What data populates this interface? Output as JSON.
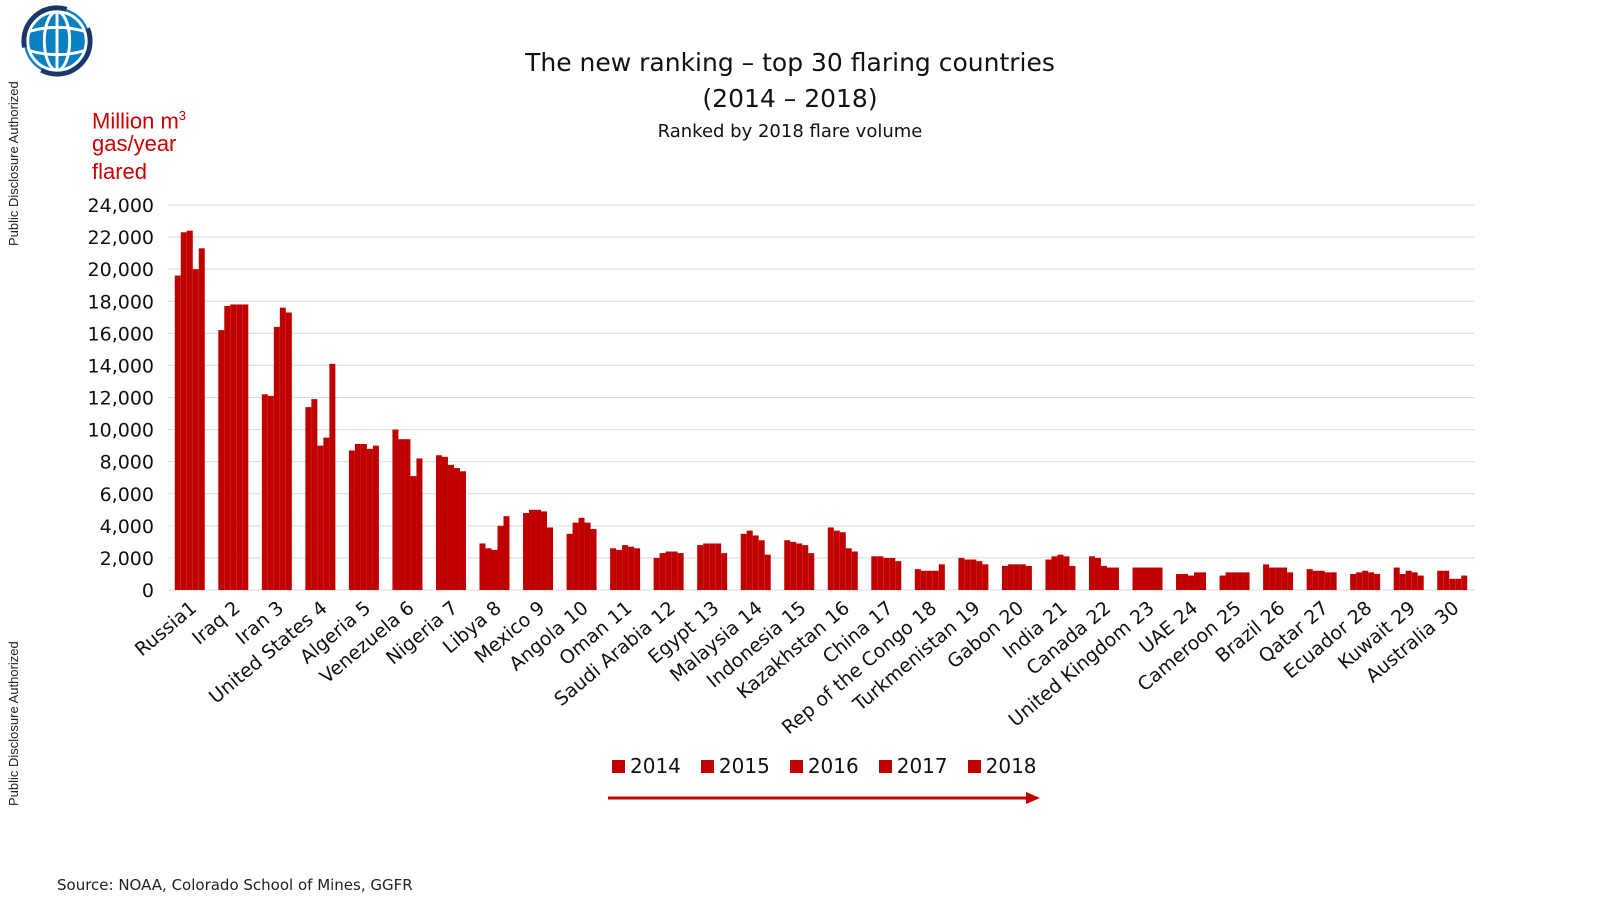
{
  "side_labels": {
    "top": "Public Disclosure Authorized",
    "bottom": "Public Disclosure Authorized"
  },
  "logo_icon": "world-bank-globe-icon",
  "colors": {
    "bar": "#c00000",
    "grid": "#d9d9d9",
    "unit_label": "#cc0000",
    "arrow": "#c00000"
  },
  "unit_label": {
    "line1": "Million m",
    "line1_sup": "3",
    "line2": "gas/year",
    "line3": "flared"
  },
  "source": "Source: NOAA, Colorado School of Mines, GGFR",
  "chart_data": {
    "type": "bar",
    "title_line1": "The new ranking – top 30 flaring countries",
    "title_line2": "(2014 – 2018)",
    "subtitle": "Ranked by 2018 flare volume",
    "ylim": [
      0,
      24000
    ],
    "y_ticks": [
      "0",
      "2,000",
      "4,000",
      "6,000",
      "8,000",
      "10,000",
      "12,000",
      "14,000",
      "16,000",
      "18,000",
      "20,000",
      "22,000",
      "24,000"
    ],
    "grid": true,
    "legend_position": "bottom",
    "categories": [
      "Russia1",
      "Iraq 2",
      "Iran 3",
      "United States 4",
      "Algeria 5",
      "Venezuela 6",
      "Nigeria 7",
      "Libya 8",
      "Mexico 9",
      "Angola 10",
      "Oman 11",
      "Saudi Arabia 12",
      "Egypt 13",
      "Malaysia 14",
      "Indonesia 15",
      "Kazakhstan 16",
      "China 17",
      "Rep of the Congo 18",
      "Turkmenistan 19",
      "Gabon 20",
      "India 21",
      "Canada 22",
      "United Kingdom 23",
      "UAE 24",
      "Cameroon 25",
      "Brazil 26",
      "Qatar 27",
      "Ecuador 28",
      "Kuwait 29",
      "Australia 30"
    ],
    "series": [
      {
        "name": "2014",
        "values": [
          19600,
          16200,
          12200,
          11400,
          8700,
          10000,
          8400,
          2900,
          4800,
          3500,
          2600,
          2000,
          2800,
          3500,
          3100,
          3900,
          2100,
          1300,
          2000,
          1500,
          1900,
          2100,
          1400,
          1000,
          900,
          1600,
          1300,
          1000,
          1400,
          1200
        ]
      },
      {
        "name": "2015",
        "values": [
          22300,
          17700,
          12100,
          11900,
          9100,
          9400,
          8300,
          2600,
          5000,
          4200,
          2500,
          2300,
          2900,
          3700,
          3000,
          3700,
          2100,
          1200,
          1900,
          1600,
          2100,
          2000,
          1400,
          1000,
          1100,
          1400,
          1200,
          1100,
          1000,
          1200
        ]
      },
      {
        "name": "2016",
        "values": [
          22400,
          17800,
          16400,
          9000,
          9100,
          9400,
          7800,
          2500,
          5000,
          4500,
          2800,
          2400,
          2900,
          3400,
          2900,
          3600,
          2000,
          1200,
          1900,
          1600,
          2200,
          1500,
          1400,
          900,
          1100,
          1400,
          1200,
          1200,
          1200,
          700
        ]
      },
      {
        "name": "2017",
        "values": [
          20000,
          17800,
          17600,
          9500,
          8800,
          7100,
          7600,
          4000,
          4900,
          4200,
          2700,
          2400,
          2900,
          3100,
          2800,
          2600,
          2000,
          1200,
          1800,
          1600,
          2100,
          1400,
          1400,
          1100,
          1100,
          1400,
          1100,
          1100,
          1100,
          700
        ]
      },
      {
        "name": "2018",
        "values": [
          21300,
          17800,
          17300,
          14100,
          9000,
          8200,
          7400,
          4600,
          3900,
          3800,
          2600,
          2300,
          2300,
          2200,
          2300,
          2400,
          1800,
          1600,
          1600,
          1500,
          1500,
          1400,
          1400,
          1100,
          1100,
          1100,
          1100,
          1000,
          900,
          900
        ]
      }
    ]
  }
}
